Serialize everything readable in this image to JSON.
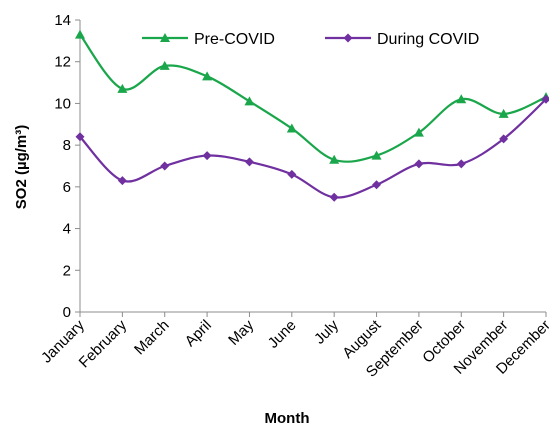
{
  "chart_data": {
    "type": "line",
    "title": "",
    "xlabel": "Month",
    "ylabel": "SO2 (µg/m³)",
    "ylim": [
      0,
      14
    ],
    "yticks": [
      0,
      2,
      4,
      6,
      8,
      10,
      12,
      14
    ],
    "grid": false,
    "legend_position": "top-right",
    "categories": [
      "January",
      "February",
      "March",
      "April",
      "May",
      "June",
      "July",
      "August",
      "September",
      "October",
      "November",
      "December"
    ],
    "series": [
      {
        "name": "Pre-COVID",
        "color": "#1aa64a",
        "marker": "triangle",
        "smooth": true,
        "values": [
          13.3,
          10.7,
          11.8,
          11.3,
          10.1,
          8.8,
          7.3,
          7.5,
          8.6,
          10.2,
          9.5,
          10.3
        ]
      },
      {
        "name": "During COVID",
        "color": "#7030a0",
        "marker": "diamond",
        "smooth": true,
        "values": [
          8.4,
          6.3,
          7.0,
          7.5,
          7.2,
          6.6,
          5.5,
          6.1,
          7.1,
          7.1,
          8.3,
          10.2
        ]
      }
    ]
  }
}
